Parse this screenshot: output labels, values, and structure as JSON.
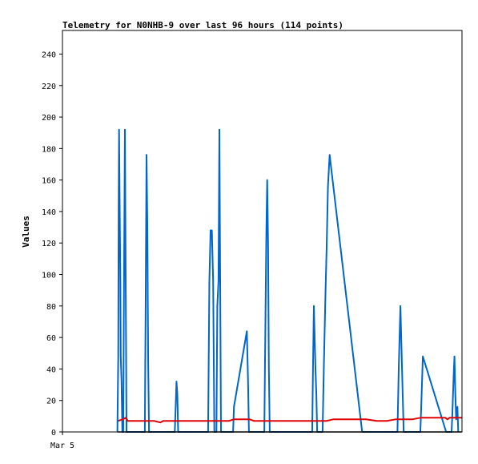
{
  "chart_data": {
    "type": "line",
    "title": "Telemetry for N0NHB-9 over last 96 hours (114 points)",
    "xlabel": "",
    "ylabel": "Values",
    "x_tick_labels": [
      "Mar 5"
    ],
    "y_ticks": [
      0,
      20,
      40,
      60,
      80,
      100,
      120,
      140,
      160,
      180,
      200,
      220,
      240
    ],
    "xlim": [
      0,
      96
    ],
    "ylim": [
      0,
      255
    ],
    "grid": false,
    "legend": "none",
    "series": [
      {
        "color": "#0066cc",
        "points": [
          [
            13.2,
            0
          ],
          [
            13.4,
            48
          ],
          [
            13.5,
            145
          ],
          [
            13.6,
            192
          ],
          [
            13.7,
            160
          ],
          [
            13.9,
            96
          ],
          [
            14.0,
            48
          ],
          [
            14.2,
            32
          ],
          [
            14.4,
            0
          ],
          [
            14.6,
            0
          ],
          [
            14.8,
            96
          ],
          [
            15.0,
            192
          ],
          [
            15.2,
            96
          ],
          [
            15.4,
            0
          ],
          [
            19.8,
            0
          ],
          [
            20.0,
            88
          ],
          [
            20.2,
            176
          ],
          [
            20.4,
            132
          ],
          [
            20.6,
            44
          ],
          [
            20.8,
            0
          ],
          [
            27.0,
            0
          ],
          [
            27.2,
            16
          ],
          [
            27.4,
            32
          ],
          [
            27.6,
            24
          ],
          [
            27.8,
            0
          ],
          [
            35.0,
            0
          ],
          [
            35.3,
            96
          ],
          [
            35.6,
            128
          ],
          [
            35.9,
            128
          ],
          [
            36.2,
            96
          ],
          [
            36.5,
            0
          ],
          [
            37.0,
            0
          ],
          [
            37.2,
            80
          ],
          [
            37.5,
            96
          ],
          [
            37.7,
            192
          ],
          [
            37.9,
            96
          ],
          [
            38.1,
            0
          ],
          [
            41.0,
            0
          ],
          [
            41.2,
            16
          ],
          [
            44.3,
            64
          ],
          [
            44.6,
            32
          ],
          [
            44.8,
            0
          ],
          [
            48.5,
            0
          ],
          [
            48.8,
            80
          ],
          [
            49.0,
            128
          ],
          [
            49.2,
            160
          ],
          [
            49.4,
            120
          ],
          [
            49.6,
            40
          ],
          [
            49.8,
            0
          ],
          [
            60.0,
            0
          ],
          [
            60.2,
            40
          ],
          [
            60.4,
            80
          ],
          [
            60.6,
            60
          ],
          [
            60.8,
            40
          ],
          [
            61.0,
            24
          ],
          [
            61.2,
            0
          ],
          [
            62.5,
            0
          ],
          [
            62.8,
            40
          ],
          [
            63.2,
            88
          ],
          [
            63.5,
            120
          ],
          [
            63.8,
            156
          ],
          [
            64.2,
            176
          ],
          [
            72.0,
            0
          ],
          [
            80.5,
            0
          ],
          [
            80.8,
            40
          ],
          [
            81.2,
            80
          ],
          [
            81.6,
            40
          ],
          [
            82.0,
            0
          ],
          [
            86.0,
            0
          ],
          [
            86.3,
            24
          ],
          [
            86.6,
            48
          ],
          [
            92.2,
            0
          ],
          [
            93.5,
            0
          ],
          [
            93.7,
            12
          ],
          [
            94.0,
            36
          ],
          [
            94.2,
            48
          ],
          [
            94.4,
            24
          ],
          [
            94.6,
            8
          ],
          [
            94.9,
            16
          ],
          [
            95.1,
            0
          ]
        ]
      },
      {
        "color": "#e00000",
        "points": [
          [
            13.3,
            7
          ],
          [
            14.5,
            8
          ],
          [
            15.2,
            9
          ],
          [
            15.7,
            7
          ],
          [
            17.0,
            7
          ],
          [
            20.0,
            7
          ],
          [
            22.0,
            7
          ],
          [
            23.5,
            6
          ],
          [
            24.2,
            7
          ],
          [
            30.0,
            7
          ],
          [
            35.0,
            7
          ],
          [
            38.0,
            7
          ],
          [
            40.0,
            7
          ],
          [
            41.2,
            8
          ],
          [
            45.0,
            8
          ],
          [
            46.0,
            7
          ],
          [
            50.0,
            7
          ],
          [
            55.0,
            7
          ],
          [
            59.0,
            7
          ],
          [
            62.0,
            7
          ],
          [
            63.5,
            7
          ],
          [
            65.0,
            8
          ],
          [
            68.0,
            8
          ],
          [
            70.0,
            8
          ],
          [
            73.0,
            8
          ],
          [
            75.5,
            7
          ],
          [
            78.0,
            7
          ],
          [
            80.0,
            8
          ],
          [
            84.0,
            8
          ],
          [
            86.0,
            9
          ],
          [
            88.0,
            9
          ],
          [
            90.0,
            9
          ],
          [
            92.0,
            9
          ],
          [
            92.5,
            8
          ],
          [
            93.0,
            9
          ],
          [
            95.0,
            9
          ],
          [
            95.9,
            9
          ]
        ]
      },
      {
        "color": "#000000",
        "points": [
          [
            13.2,
            0
          ],
          [
            95.9,
            0
          ]
        ]
      }
    ]
  }
}
